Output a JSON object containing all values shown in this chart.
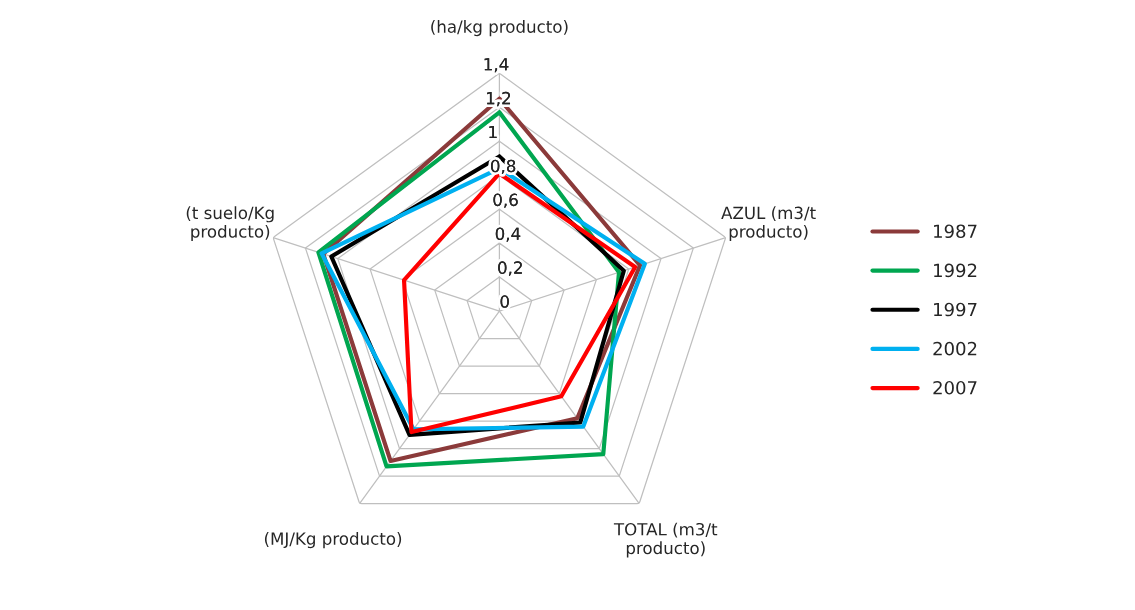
{
  "chart_data": {
    "type": "radar",
    "categories": [
      "(ha/kg producto)",
      "AZUL (m3/t\nproducto)",
      "TOTAL (m3/t\nproducto)",
      "(MJ/Kg producto)",
      "(t suelo/Kg\nproducto)"
    ],
    "series": [
      {
        "name": "1987",
        "color": "#8b3a3a",
        "values": [
          1.25,
          0.87,
          0.78,
          1.09,
          1.09
        ]
      },
      {
        "name": "1992",
        "color": "#00a650",
        "values": [
          1.17,
          0.74,
          1.04,
          1.13,
          1.12
        ]
      },
      {
        "name": "1997",
        "color": "#000000",
        "values": [
          0.91,
          0.77,
          0.81,
          0.9,
          1.04
        ]
      },
      {
        "name": "2002",
        "color": "#00b0f0",
        "values": [
          0.84,
          0.9,
          0.84,
          0.86,
          1.1
        ]
      },
      {
        "name": "2007",
        "color": "#ff0000",
        "values": [
          0.81,
          0.84,
          0.62,
          0.88,
          0.59
        ]
      }
    ],
    "ylim": [
      0,
      1.4
    ],
    "yticks": [
      0,
      {
        "value": 0.2,
        "label": "0,2"
      },
      {
        "value": 0.4,
        "label": "0,4"
      },
      {
        "value": 0.6,
        "label": "0,6"
      },
      {
        "value": 0.8,
        "label": "0,8"
      },
      1,
      {
        "value": 1.2,
        "label": "1,2"
      },
      {
        "value": 1.4,
        "label": "1,4"
      }
    ],
    "grid": true,
    "legend": "right",
    "marker": "none",
    "line_style": "solid"
  }
}
